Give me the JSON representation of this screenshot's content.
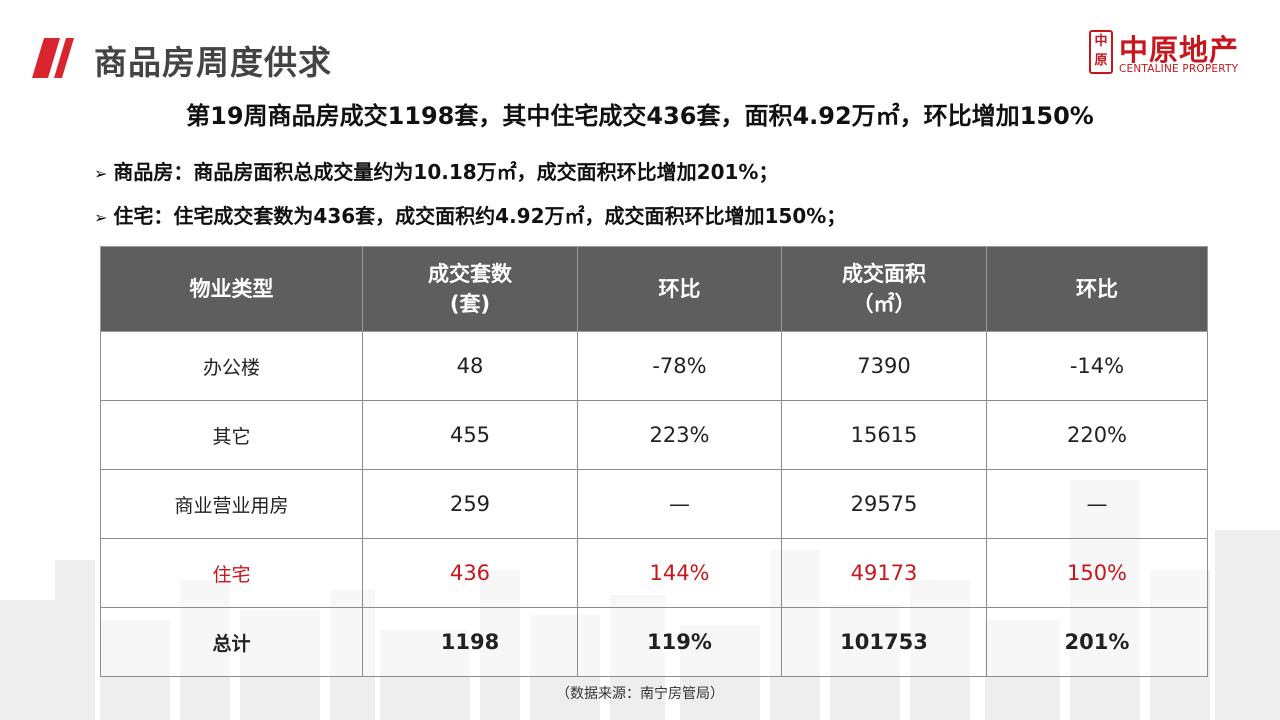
{
  "header": {
    "title": "商品房周度供求",
    "accent_color": "#d9262e",
    "brand": {
      "seal_chars": [
        "中",
        "原"
      ],
      "name_cn": "中原地产",
      "name_en": "CENTALINE PROPERTY",
      "color": "#c8161d"
    }
  },
  "headline": "第19周商品房成交1198套，其中住宅成交436套，面积4.92万㎡，环比增加150%",
  "bullets": [
    {
      "text": "商品房：商品房面积总成交量约为10.18万㎡，成交面积环比增加201%；"
    },
    {
      "text": "住宅：住宅成交套数为436套，成交面积约4.92万㎡，成交面积环比增加150%；"
    }
  ],
  "table": {
    "headers": [
      "物业类型",
      "成交套数\n(套)",
      "环比",
      "成交面积\n（㎡）",
      "环比"
    ],
    "rows": [
      [
        "办公楼",
        "48",
        "-78%",
        "7390",
        "-14%"
      ],
      [
        "其它",
        "455",
        "223%",
        "15615",
        "220%"
      ],
      [
        "商业营业用房",
        "259",
        "—",
        "29575",
        "—"
      ],
      [
        "住宅",
        "436",
        "144%",
        "49173",
        "150%"
      ],
      [
        "总计",
        "1198",
        "119%",
        "101753",
        "201%"
      ]
    ],
    "highlight_row_color": "#c8161d",
    "header_bg": "#5e5e5e"
  },
  "source": "（数据来源：南宁房管局）"
}
